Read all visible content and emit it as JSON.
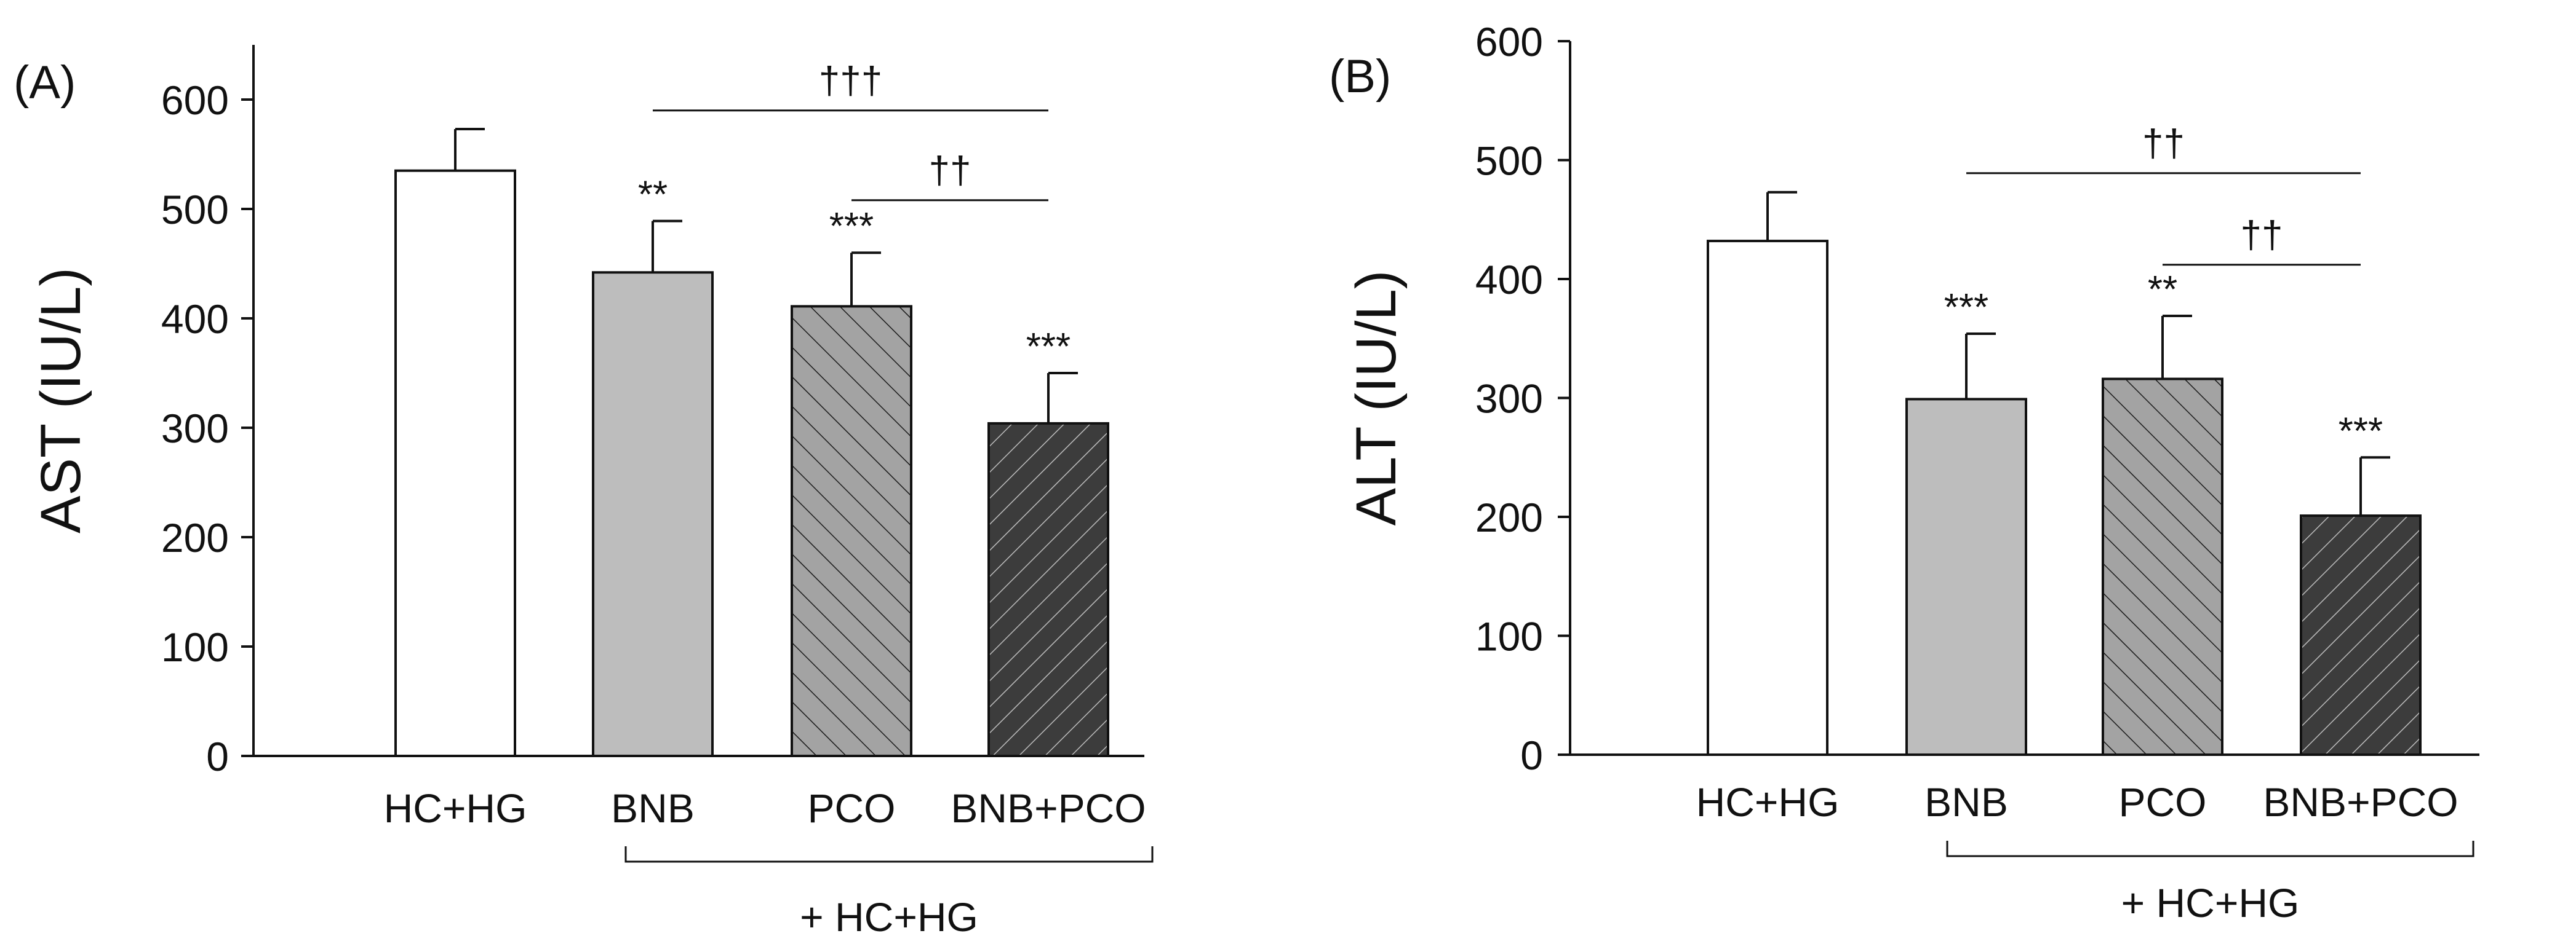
{
  "chart_data": [
    {
      "panel_label": "(A)",
      "type": "bar",
      "ylabel": "AST (IU/L)",
      "ylim": [
        0,
        650
      ],
      "yticks": [
        0,
        100,
        200,
        300,
        400,
        500,
        600
      ],
      "categories": [
        "HC+HG",
        "BNB",
        "PCO",
        "BNB+PCO"
      ],
      "values": [
        535,
        442,
        411,
        304
      ],
      "errors": [
        38,
        47,
        49,
        46
      ],
      "significance": [
        "",
        "**",
        "***",
        "***"
      ],
      "fills": [
        "white",
        "light-gray",
        "hatch-gray",
        "hatch-dark"
      ],
      "comparisons": [
        {
          "label": "†††",
          "from": 1,
          "to": 3,
          "y": 590
        },
        {
          "label": "††",
          "from": 2,
          "to": 3,
          "y": 508
        }
      ],
      "group_label": "+ HC+HG"
    },
    {
      "panel_label": "(B)",
      "type": "bar",
      "ylabel": "ALT (IU/L)",
      "ylim": [
        0,
        600
      ],
      "yticks": [
        0,
        100,
        200,
        300,
        400,
        500,
        600
      ],
      "categories": [
        "HC+HG",
        "BNB",
        "PCO",
        "BNB+PCO"
      ],
      "values": [
        432,
        299,
        316,
        201
      ],
      "errors": [
        41,
        55,
        53,
        49
      ],
      "significance": [
        "",
        "***",
        "**",
        "***"
      ],
      "fills": [
        "white",
        "light-gray",
        "hatch-gray",
        "hatch-dark"
      ],
      "comparisons": [
        {
          "label": "††",
          "from": 1,
          "to": 3,
          "y": 489
        },
        {
          "label": "††",
          "from": 2,
          "to": 3,
          "y": 412
        }
      ],
      "group_label": "+ HC+HG"
    }
  ],
  "colors": {
    "axis": "#111111",
    "white": "#ffffff",
    "light-gray": "#bdbdbd",
    "hatch-gray-bg": "#a3a3a3",
    "hatch-dark-bg": "#3c3c3c"
  }
}
